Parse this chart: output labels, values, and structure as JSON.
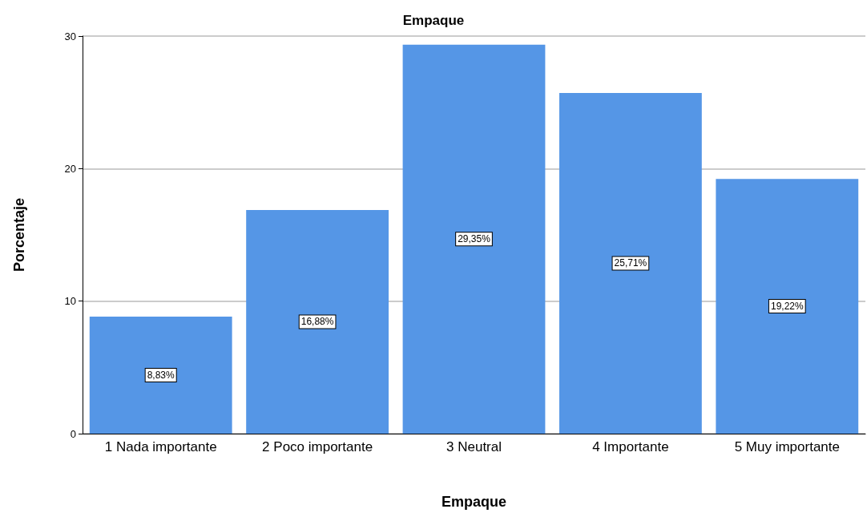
{
  "chart_data": {
    "type": "bar",
    "title": "Empaque",
    "xlabel": "Empaque",
    "ylabel": "Porcentaje",
    "categories": [
      "1 Nada importante",
      "2 Poco importante",
      "3 Neutral",
      "4 Importante",
      "5 Muy importante"
    ],
    "values": [
      8.83,
      16.88,
      29.35,
      25.71,
      19.22
    ],
    "value_labels": [
      "8,83%",
      "16,88%",
      "29,35%",
      "25,71%",
      "19,22%"
    ],
    "color": "#5596e6",
    "ylim": [
      0,
      30
    ],
    "yticks": [
      0,
      10,
      20,
      30
    ],
    "grid": "y"
  }
}
